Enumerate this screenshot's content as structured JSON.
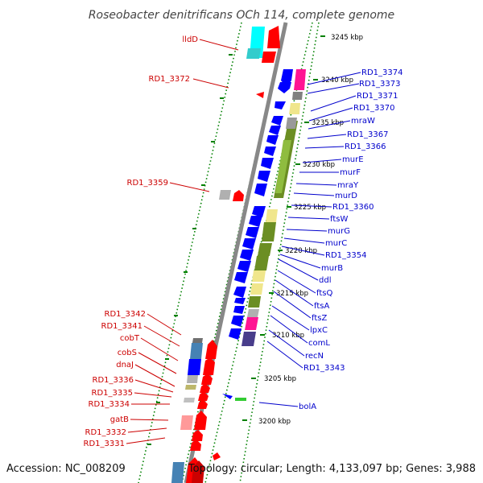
{
  "title": "Roseobacter denitrificans OCh 114, complete genome",
  "footer": {
    "accession": "Accession: NC_008209",
    "topology": "Topology: circular; Length: 4,133,097 bp; Genes: 3,988"
  },
  "colors": {
    "left_strand": "#ff0000",
    "right_strand": "#0000ff",
    "left_label": "#cc0000",
    "right_label": "#0000cc",
    "backbone": "#888888",
    "tick_dots": "#008000",
    "cog_green": "#6b8e23",
    "cog_yellow": "#f0e68c",
    "cog_cyan": "#00ffff",
    "cog_magenta": "#ff1493",
    "cog_steel": "#4682b4",
    "cog_purple": "#483d8b",
    "cog_gray": "#b0b0b0",
    "cog_pink": "#ff9999"
  },
  "kbp_ticks": [
    "3245 kbp",
    "3240 kbp",
    "3235 kbp",
    "3230 kbp",
    "3225 kbp",
    "3220 kbp",
    "3215 kbp",
    "3210 kbp",
    "3205 kbp",
    "3200 kbp"
  ],
  "left_labels": [
    "lldD",
    "RD1_3372",
    "RD1_3359",
    "RD1_3342",
    "RD1_3341",
    "cobT",
    "cobS",
    "dnaJ",
    "RD1_3336",
    "RD1_3335",
    "RD1_3334",
    "gatB",
    "RD1_3332",
    "RD1_3331"
  ],
  "right_labels": [
    "RD1_3374",
    "RD1_3373",
    "RD1_3371",
    "RD1_3370",
    "mraW",
    "RD1_3367",
    "RD1_3366",
    "murE",
    "murF",
    "mraY",
    "murD",
    "RD1_3360",
    "ftsW",
    "murG",
    "murC",
    "RD1_3354",
    "murB",
    "ddl",
    "ftsQ",
    "ftsA",
    "ftsZ",
    "lpxC",
    "comL",
    "recN",
    "RD1_3343",
    "bolA"
  ]
}
